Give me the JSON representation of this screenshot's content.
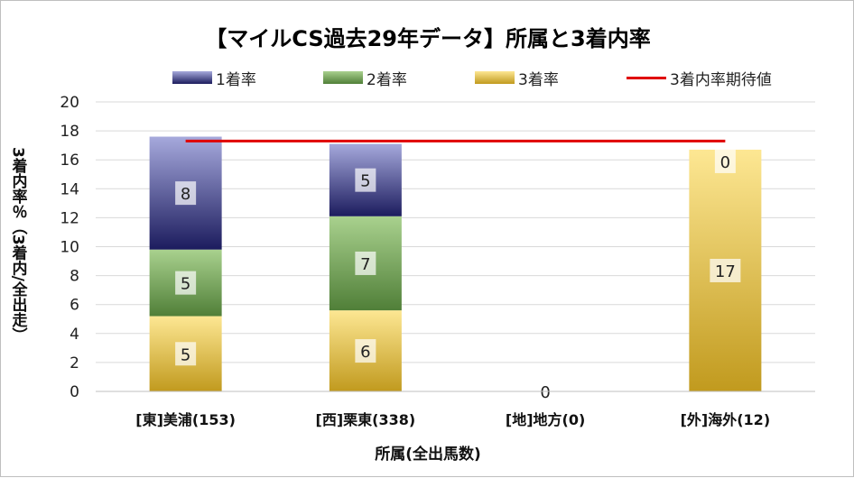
{
  "chart_data": {
    "type": "bar",
    "title": "【マイルCS過去29年データ】所属と3着内率",
    "xlabel": "所属(全出馬数)",
    "ylabel": "3着内率％（3着内/全出走）",
    "ylim": [
      0,
      20
    ],
    "yticks": [
      0,
      2,
      4,
      6,
      8,
      10,
      12,
      14,
      16,
      18,
      20
    ],
    "grid": true,
    "legend_position": "top",
    "categories": [
      "[東]美浦(153)",
      "[西]栗東(338)",
      "[地]地方(0)",
      "[外]海外(12)"
    ],
    "series": [
      {
        "name": "3着率",
        "values": [
          5.2,
          5.6,
          0,
          16.7
        ],
        "labels": [
          "5",
          "6",
          "0",
          "17"
        ],
        "colors": [
          "#c19a1e",
          "#fde793"
        ]
      },
      {
        "name": "2着率",
        "values": [
          4.6,
          6.5,
          0,
          0
        ],
        "labels": [
          "5",
          "7",
          "",
          ""
        ],
        "colors": [
          "#507f38",
          "#a9d18e"
        ]
      },
      {
        "name": "1着率",
        "values": [
          7.8,
          5.0,
          0,
          0
        ],
        "labels": [
          "8",
          "5",
          "",
          "0"
        ],
        "colors": [
          "#1c1c5e",
          "#a6a9dc"
        ]
      }
    ],
    "expected_line": {
      "name": "3着内率期待値",
      "value": 17.3,
      "color": "#e00000"
    }
  }
}
